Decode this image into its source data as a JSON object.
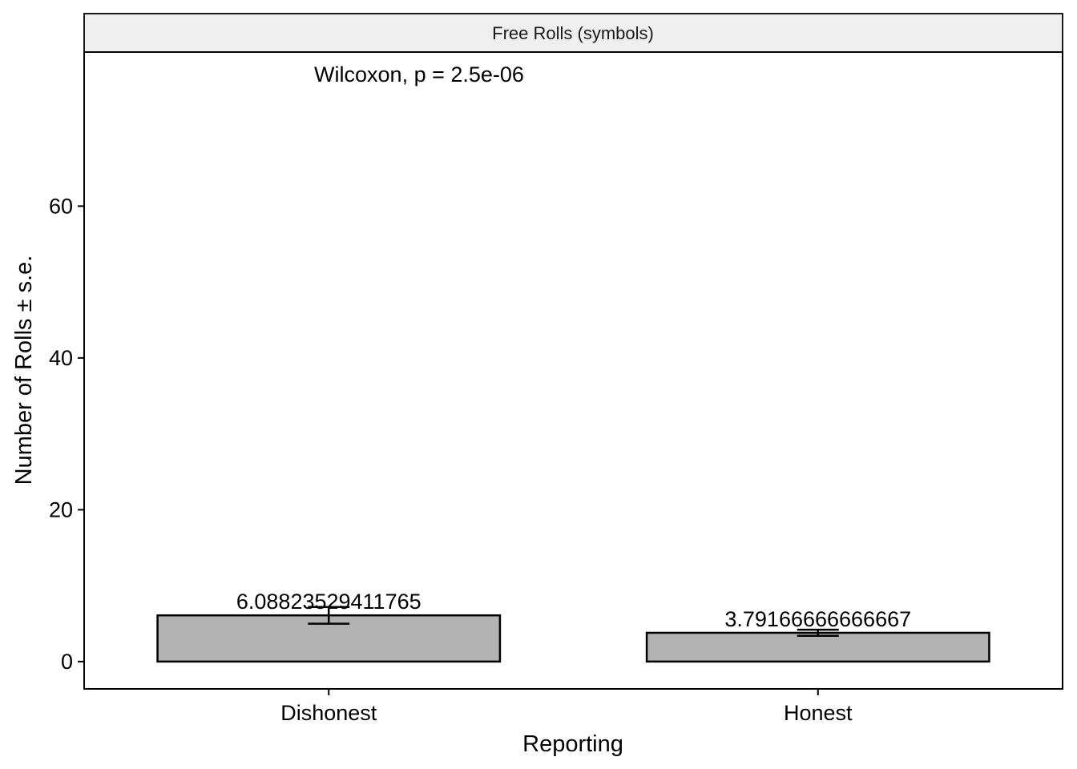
{
  "chart_data": {
    "type": "bar",
    "facet_title": "Free Rolls (symbols)",
    "annotation": "Wilcoxon, p = 2.5e-06",
    "xlabel": "Reporting",
    "ylabel": "Number of Rolls  ± s.e.",
    "categories": [
      "Dishonest",
      "Honest"
    ],
    "values": [
      6.08823529411765,
      3.79166666666667
    ],
    "value_labels": [
      "6.08823529411765",
      "3.79166666666667"
    ],
    "errors": [
      1.1,
      0.4
    ],
    "ylim": [
      -3.6,
      80.3
    ],
    "yticks": [
      0,
      20,
      40,
      60
    ],
    "ytick_labels": [
      "0",
      "20",
      "40",
      "60"
    ],
    "grid": false,
    "legend": "none",
    "colors": {
      "bar_fill": "#b2b2b2",
      "bar_stroke": "#000000",
      "strip_fill": "#efefef"
    }
  }
}
